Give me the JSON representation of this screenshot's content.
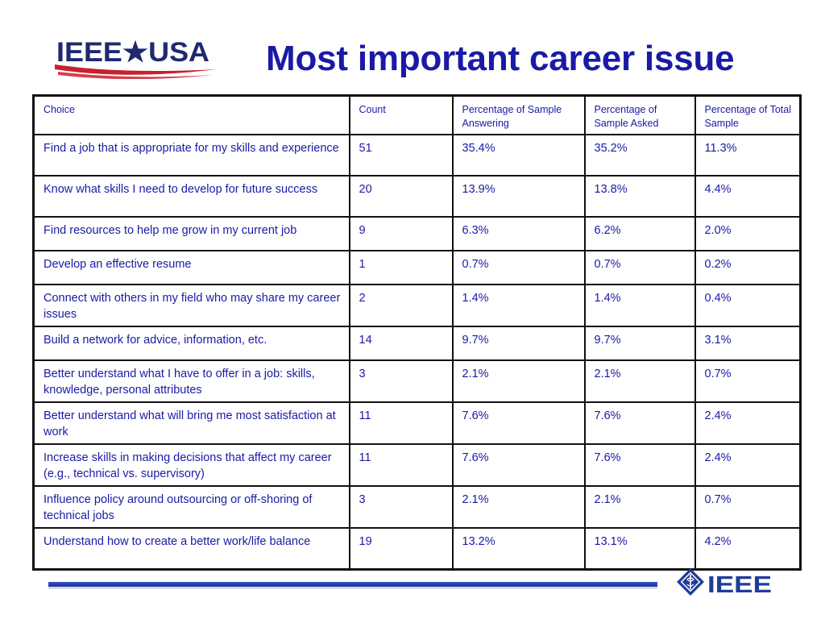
{
  "header": {
    "logo_text": "IEEE★USA",
    "title": "Most important career issue"
  },
  "table": {
    "columns": [
      "Choice",
      "Count",
      "Percentage of Sample Answering",
      "Percentage of Sample Asked",
      "Percentage of Total Sample"
    ],
    "rows": [
      [
        "Find a job that is appropriate for my skills and experience",
        "51",
        "35.4%",
        "35.2%",
        "11.3%"
      ],
      [
        "Know what skills I need to develop for future success",
        "20",
        "13.9%",
        "13.8%",
        "4.4%"
      ],
      [
        "Find resources to help me grow in my current job",
        "9",
        "6.3%",
        "6.2%",
        "2.0%"
      ],
      [
        "Develop an effective resume",
        "1",
        "0.7%",
        "0.7%",
        "0.2%"
      ],
      [
        "Connect with others in my field who may share my career issues",
        "2",
        "1.4%",
        "1.4%",
        "0.4%"
      ],
      [
        "Build a network for advice, information, etc.",
        "14",
        "9.7%",
        "9.7%",
        "3.1%"
      ],
      [
        "Better understand what I have to offer in a job: skills, knowledge, personal attributes",
        "3",
        "2.1%",
        "2.1%",
        "0.7%"
      ],
      [
        "Better understand what will bring me most satisfaction at work",
        "11",
        "7.6%",
        "7.6%",
        "2.4%"
      ],
      [
        "Increase skills in making decisions that affect my career (e.g., technical vs. supervisory)",
        "11",
        "7.6%",
        "7.6%",
        "2.4%"
      ],
      [
        "Influence policy around outsourcing or off-shoring of technical jobs",
        "3",
        "2.1%",
        "2.1%",
        "0.7%"
      ],
      [
        "Understand how to create a better work/life balance",
        "19",
        "13.2%",
        "13.1%",
        "4.2%"
      ]
    ]
  },
  "footer": {
    "logo_text": "IEEE"
  },
  "colors": {
    "text_blue": "#1a1aa6",
    "logo_red": "#c8202f",
    "logo_navy": "#1f2a6e",
    "rule_blue": "#2e46b8"
  }
}
